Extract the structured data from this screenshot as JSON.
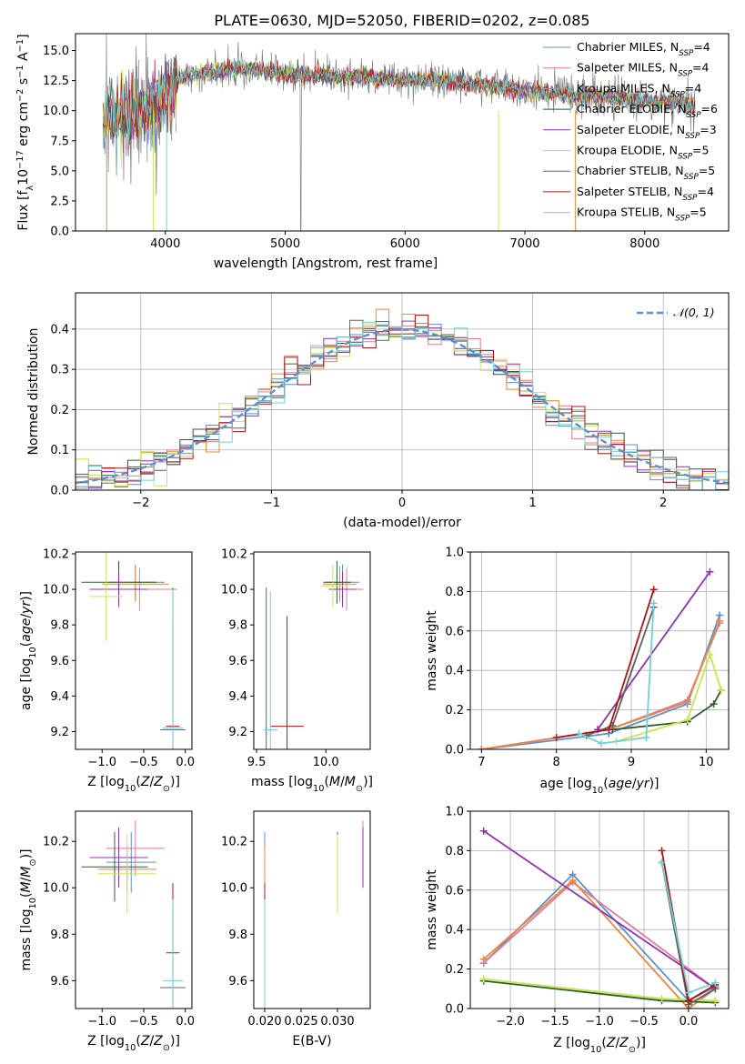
{
  "figure_title": "PLATE=0630, MJD=52050, FIBERID=0202, z=0.085",
  "colors": {
    "Chabrier MILES": "#5b8fd6",
    "Salpeter MILES": "#e07a9e",
    "Kroupa MILES": "#e8883a",
    "Chabrier ELODIE": "#2e5e2e",
    "Salpeter ELODIE": "#8e34b4",
    "Kroupa ELODIE": "#c8e64a",
    "Chabrier STELIB": "#606060",
    "Salpeter STELIB": "#b01414",
    "Kroupa STELIB": "#6fd0d6",
    "data": "#808080",
    "normal": "#5b8fd6"
  },
  "chart_data": [
    {
      "type": "line",
      "xlabel": "wavelength [Angstrom, rest frame]",
      "ylabel_parts": [
        "Flux [f",
        "λ",
        "10",
        "−17",
        " erg cm",
        "−2",
        " s",
        "−1",
        " A",
        "−1",
        "]"
      ],
      "xlim": [
        3250,
        8700
      ],
      "ylim": [
        0,
        16.4
      ],
      "xticks": [
        "4000",
        "5000",
        "6000",
        "7000",
        "8000"
      ],
      "xtick_values": [
        4000,
        5000,
        6000,
        7000,
        8000
      ],
      "yticks": [
        "0.0",
        "2.5",
        "5.0",
        "7.5",
        "10.0",
        "12.5",
        "15.0"
      ],
      "ytick_values": [
        0,
        2.5,
        5,
        7.5,
        10,
        12.5,
        15
      ],
      "continuum": {
        "x": [
          3480,
          3600,
          3700,
          3800,
          3900,
          4000,
          4100,
          4200,
          4400,
          4600,
          4800,
          5000,
          5200,
          5400,
          5600,
          5800,
          6000,
          6200,
          6400,
          6600,
          6800,
          7000,
          7200,
          7400,
          7600,
          7800,
          8000,
          8200,
          8400
        ],
        "y": [
          9.0,
          9.3,
          9.6,
          9.9,
          10.2,
          11.2,
          12.6,
          13.0,
          13.2,
          13.5,
          13.3,
          13.1,
          13.0,
          12.9,
          12.8,
          12.7,
          12.6,
          12.5,
          12.4,
          12.2,
          12.0,
          11.7,
          11.5,
          11.3,
          11.2,
          11.0,
          10.8,
          10.7,
          10.6
        ]
      },
      "legend_title": [
        "Chabrier MILES",
        "Salpeter MILES",
        "Kroupa MILES",
        "Chabrier ELODIE",
        "Salpeter ELODIE",
        "Kroupa ELODIE",
        "Chabrier STELIB",
        "Salpeter STELIB",
        "Kroupa STELIB"
      ],
      "legend_nssp": [
        "4",
        "4",
        "4",
        "6",
        "3",
        "5",
        "5",
        "4",
        "5"
      ],
      "legend_sub": "SSP",
      "legend_mid": ", N",
      "legend_eq": "=",
      "legend_position": "top-right"
    },
    {
      "type": "step",
      "xlabel": "(data-model)/error",
      "ylabel": "Normed distribution",
      "xlim": [
        -2.5,
        2.5
      ],
      "ylim": [
        0,
        0.49
      ],
      "xticks": [
        "−2",
        "−1",
        "0",
        "1",
        "2"
      ],
      "xtick_values": [
        -2,
        -1,
        0,
        1,
        2
      ],
      "yticks": [
        "0.0",
        "0.1",
        "0.2",
        "0.3",
        "0.4"
      ],
      "ytick_values": [
        0,
        0.1,
        0.2,
        0.3,
        0.4
      ],
      "bin_width": 0.1,
      "normal_label": "𝒩(0, 1)",
      "legend_position": "top-right",
      "grid": true
    },
    {
      "type": "errorbar",
      "xlabel": "Z [log10(Z/Z⊙)]",
      "ylabel": "age  [log10(age/yr)]",
      "xlim": [
        -1.32,
        0.08
      ],
      "ylim": [
        9.1,
        10.21
      ],
      "xticks": [
        "−1.0",
        "−0.5",
        "0.0"
      ],
      "xtick_values": [
        -1,
        -0.5,
        0
      ],
      "yticks": [
        "9.2",
        "9.4",
        "9.6",
        "9.8",
        "10.0",
        "10.2"
      ],
      "ytick_values": [
        9.2,
        9.4,
        9.6,
        9.8,
        10.0,
        10.2
      ],
      "points": [
        {
          "model": "Chabrier MILES",
          "x": -0.6,
          "xerr": 0.35,
          "y": 10.04,
          "yerr": 0.1
        },
        {
          "model": "Salpeter MILES",
          "x": -0.55,
          "xerr": 0.45,
          "y": 10.0,
          "yerr": 0.12
        },
        {
          "model": "Kroupa MILES",
          "x": -0.6,
          "xerr": 0.4,
          "y": 10.03,
          "yerr": 0.1
        },
        {
          "model": "Chabrier ELODIE",
          "x": -0.8,
          "xerr": 0.45,
          "y": 10.04,
          "yerr": 0.12
        },
        {
          "model": "Salpeter ELODIE",
          "x": -0.8,
          "xerr": 0.35,
          "y": 10.0,
          "yerr": 0.1
        },
        {
          "model": "Kroupa ELODIE",
          "x": -0.95,
          "xerr": 0.2,
          "y": 9.96,
          "yerr": 0.25
        },
        {
          "model": "Chabrier STELIB",
          "x": -0.15,
          "xerr": 0.15,
          "y": 9.21,
          "yerr": 0.8
        },
        {
          "model": "Salpeter STELIB",
          "x": -0.15,
          "xerr": 0.08,
          "y": 9.23,
          "yerr": 0.62
        },
        {
          "model": "Kroupa STELIB",
          "x": -0.15,
          "xerr": 0.12,
          "y": 9.22,
          "yerr": 0.78
        }
      ]
    },
    {
      "type": "errorbar",
      "xlabel": "mass [log10(M/M⊙)]",
      "ylabel": "",
      "xlim": [
        9.48,
        10.32
      ],
      "ylim": [
        9.1,
        10.21
      ],
      "xticks": [
        "9.5",
        "10.0"
      ],
      "xtick_values": [
        9.5,
        10.0
      ],
      "yticks": [
        "9.2",
        "9.4",
        "9.6",
        "9.8",
        "10.0",
        "10.2"
      ],
      "ytick_values": [
        9.2,
        9.4,
        9.6,
        9.8,
        10.0,
        10.2
      ],
      "points": [
        {
          "model": "Chabrier MILES",
          "x": 10.12,
          "xerr": 0.12,
          "y": 10.04,
          "yerr": 0.1
        },
        {
          "model": "Salpeter MILES",
          "x": 10.15,
          "xerr": 0.12,
          "y": 10.0,
          "yerr": 0.12
        },
        {
          "model": "Kroupa MILES",
          "x": 10.1,
          "xerr": 0.12,
          "y": 10.03,
          "yerr": 0.1
        },
        {
          "model": "Chabrier ELODIE",
          "x": 10.08,
          "xerr": 0.1,
          "y": 10.04,
          "yerr": 0.12
        },
        {
          "model": "Salpeter ELODIE",
          "x": 10.12,
          "xerr": 0.1,
          "y": 10.0,
          "yerr": 0.1
        },
        {
          "model": "Kroupa ELODIE",
          "x": 10.05,
          "xerr": 0.08,
          "y": 10.02,
          "yerr": 0.12
        },
        {
          "model": "Chabrier STELIB",
          "x": 9.57,
          "xerr": 0.0,
          "y": 9.21,
          "yerr": 0.8
        },
        {
          "model": "Salpeter STELIB",
          "x": 9.72,
          "xerr": 0.12,
          "y": 9.23,
          "yerr": 0.62
        },
        {
          "model": "Kroupa STELIB",
          "x": 9.6,
          "xerr": 0.05,
          "y": 9.21,
          "yerr": 0.78
        }
      ]
    },
    {
      "type": "line",
      "xlabel": "age  [log10(age/yr)]",
      "ylabel": "mass weight",
      "xlim": [
        6.85,
        10.3
      ],
      "ylim": [
        0,
        1.0
      ],
      "xticks": [
        "7",
        "8",
        "9",
        "10"
      ],
      "xtick_values": [
        7,
        8,
        9,
        10
      ],
      "yticks": [
        "0.0",
        "0.2",
        "0.4",
        "0.6",
        "0.8",
        "1.0"
      ],
      "ytick_values": [
        0,
        0.2,
        0.4,
        0.6,
        0.8,
        1.0
      ],
      "grid": true,
      "series": [
        {
          "model": "Chabrier MILES",
          "x": [
            7.0,
            8.7,
            9.75,
            10.18
          ],
          "y": [
            0.0,
            0.08,
            0.23,
            0.68
          ]
        },
        {
          "model": "Salpeter MILES",
          "x": [
            7.0,
            8.7,
            9.75,
            10.18
          ],
          "y": [
            0.0,
            0.1,
            0.25,
            0.64
          ]
        },
        {
          "model": "Kroupa MILES",
          "x": [
            7.0,
            8.7,
            9.75,
            10.18
          ],
          "y": [
            0.0,
            0.1,
            0.24,
            0.65
          ]
        },
        {
          "model": "Chabrier ELODIE",
          "x": [
            8.75,
            9.75,
            10.1,
            10.2
          ],
          "y": [
            0.1,
            0.14,
            0.23,
            0.3
          ]
        },
        {
          "model": "Salpeter ELODIE",
          "x": [
            8.55,
            10.05
          ],
          "y": [
            0.1,
            0.9
          ]
        },
        {
          "model": "Kroupa ELODIE",
          "x": [
            8.8,
            9.75,
            10.05,
            10.2
          ],
          "y": [
            0.04,
            0.15,
            0.48,
            0.3
          ]
        },
        {
          "model": "Chabrier STELIB",
          "x": [
            8.4,
            8.75,
            9.3
          ],
          "y": [
            0.07,
            0.12,
            0.72
          ]
        },
        {
          "model": "Salpeter STELIB",
          "x": [
            8.0,
            8.7,
            9.3
          ],
          "y": [
            0.06,
            0.1,
            0.81
          ]
        },
        {
          "model": "Kroupa STELIB",
          "x": [
            8.3,
            8.6,
            9.2,
            9.3
          ],
          "y": [
            0.08,
            0.03,
            0.06,
            0.74
          ]
        }
      ]
    },
    {
      "type": "errorbar",
      "xlabel": "Z [log10(Z/Z⊙)]",
      "ylabel": "mass [log10(M/M⊙)]",
      "xlim": [
        -1.32,
        0.08
      ],
      "ylim": [
        9.48,
        10.33
      ],
      "xticks": [
        "−1.0",
        "−0.5",
        "0.0"
      ],
      "xtick_values": [
        -1,
        -0.5,
        0
      ],
      "yticks": [
        "9.6",
        "9.8",
        "10.0",
        "10.2"
      ],
      "ytick_values": [
        9.6,
        9.8,
        10.0,
        10.2
      ],
      "points": [
        {
          "model": "Chabrier MILES",
          "x": -0.65,
          "xerr": 0.3,
          "y": 10.11,
          "yerr": 0.13
        },
        {
          "model": "Salpeter MILES",
          "x": -0.6,
          "xerr": 0.35,
          "y": 10.17,
          "yerr": 0.12
        },
        {
          "model": "Kroupa MILES",
          "x": -0.7,
          "xerr": 0.35,
          "y": 10.08,
          "yerr": 0.1
        },
        {
          "model": "Chabrier ELODIE",
          "x": -0.85,
          "xerr": 0.4,
          "y": 10.09,
          "yerr": 0.15
        },
        {
          "model": "Salpeter ELODIE",
          "x": -0.8,
          "xerr": 0.35,
          "y": 10.13,
          "yerr": 0.13
        },
        {
          "model": "Kroupa ELODIE",
          "x": -0.7,
          "xerr": 0.35,
          "y": 10.06,
          "yerr": 0.17
        },
        {
          "model": "Chabrier STELIB",
          "x": -0.15,
          "xerr": 0.15,
          "y": 9.57,
          "yerr": 0.35
        },
        {
          "model": "Salpeter STELIB",
          "x": -0.15,
          "xerr": 0.08,
          "y": 9.72,
          "yerr": 0.3
        },
        {
          "model": "Kroupa STELIB",
          "x": -0.15,
          "xerr": 0.12,
          "y": 9.6,
          "yerr": 0.35
        }
      ]
    },
    {
      "type": "errorbar",
      "xlabel": "E(B-V)",
      "ylabel": "",
      "xlim": [
        0.0185,
        0.0345
      ],
      "ylim": [
        9.48,
        10.33
      ],
      "xticks": [
        "0.020",
        "0.025",
        "0.030"
      ],
      "xtick_values": [
        0.02,
        0.025,
        0.03
      ],
      "yticks": [
        "9.6",
        "9.8",
        "10.0",
        "10.2"
      ],
      "ytick_values": [
        9.6,
        9.8,
        10.0,
        10.2
      ],
      "points": [
        {
          "model": "Chabrier MILES",
          "x": 0.02,
          "xerr": 0.0,
          "y": 10.11,
          "yerr": 0.13
        },
        {
          "model": "Salpeter MILES",
          "x": 0.0335,
          "xerr": 0.0,
          "y": 10.17,
          "yerr": 0.12
        },
        {
          "model": "Kroupa MILES",
          "x": 0.02,
          "xerr": 0.0,
          "y": 10.08,
          "yerr": 0.1
        },
        {
          "model": "Chabrier ELODIE",
          "x": 0.03,
          "xerr": 0.0,
          "y": 10.09,
          "yerr": 0.15
        },
        {
          "model": "Salpeter ELODIE",
          "x": 0.0335,
          "xerr": 0.0,
          "y": 10.13,
          "yerr": 0.13
        },
        {
          "model": "Kroupa ELODIE",
          "x": 0.03,
          "xerr": 0.0,
          "y": 10.06,
          "yerr": 0.17
        },
        {
          "model": "Chabrier STELIB",
          "x": 0.02,
          "xerr": 0.0,
          "y": 9.57,
          "yerr": 0.35
        },
        {
          "model": "Salpeter STELIB",
          "x": 0.02,
          "xerr": 0.0,
          "y": 9.72,
          "yerr": 0.3
        },
        {
          "model": "Kroupa STELIB",
          "x": 0.02,
          "xerr": 0.0,
          "y": 9.6,
          "yerr": 0.35
        }
      ]
    },
    {
      "type": "line",
      "xlabel": "Z [log10(Z/Z⊙)]",
      "ylabel": "mass weight",
      "xlim": [
        -2.45,
        0.45
      ],
      "ylim": [
        0,
        1.0
      ],
      "xticks": [
        "−2.0",
        "−1.5",
        "−1.0",
        "−0.5",
        "0.0"
      ],
      "xtick_values": [
        -2,
        -1.5,
        -1,
        -0.5,
        0
      ],
      "yticks": [
        "0.0",
        "0.2",
        "0.4",
        "0.6",
        "0.8",
        "1.0"
      ],
      "ytick_values": [
        0,
        0.2,
        0.4,
        0.6,
        0.8,
        1.0
      ],
      "grid": true,
      "series": [
        {
          "model": "Chabrier MILES",
          "x": [
            -2.3,
            -1.3,
            0.0,
            0.3
          ],
          "y": [
            0.23,
            0.68,
            0.04,
            0.11
          ]
        },
        {
          "model": "Salpeter MILES",
          "x": [
            -2.3,
            -1.3,
            0.3
          ],
          "y": [
            0.23,
            0.64,
            0.1
          ]
        },
        {
          "model": "Kroupa MILES",
          "x": [
            -2.3,
            -1.3,
            0.0,
            0.3
          ],
          "y": [
            0.25,
            0.65,
            0.0,
            0.1
          ]
        },
        {
          "model": "Chabrier ELODIE",
          "x": [
            -2.3,
            -0.3,
            0.3
          ],
          "y": [
            0.14,
            0.04,
            0.03
          ]
        },
        {
          "model": "Salpeter ELODIE",
          "x": [
            -2.3,
            0.3
          ],
          "y": [
            0.9,
            0.1
          ]
        },
        {
          "model": "Kroupa ELODIE",
          "x": [
            -2.3,
            -0.3,
            0.3
          ],
          "y": [
            0.15,
            0.05,
            0.04
          ]
        },
        {
          "model": "Chabrier STELIB",
          "x": [
            -0.3,
            0.0,
            0.3
          ],
          "y": [
            0.74,
            0.02,
            0.1
          ]
        },
        {
          "model": "Salpeter STELIB",
          "x": [
            -0.3,
            0.0,
            0.3
          ],
          "y": [
            0.8,
            0.04,
            0.12
          ]
        },
        {
          "model": "Kroupa STELIB",
          "x": [
            -0.3,
            0.0,
            0.3
          ],
          "y": [
            0.74,
            0.08,
            0.13
          ]
        }
      ]
    }
  ]
}
